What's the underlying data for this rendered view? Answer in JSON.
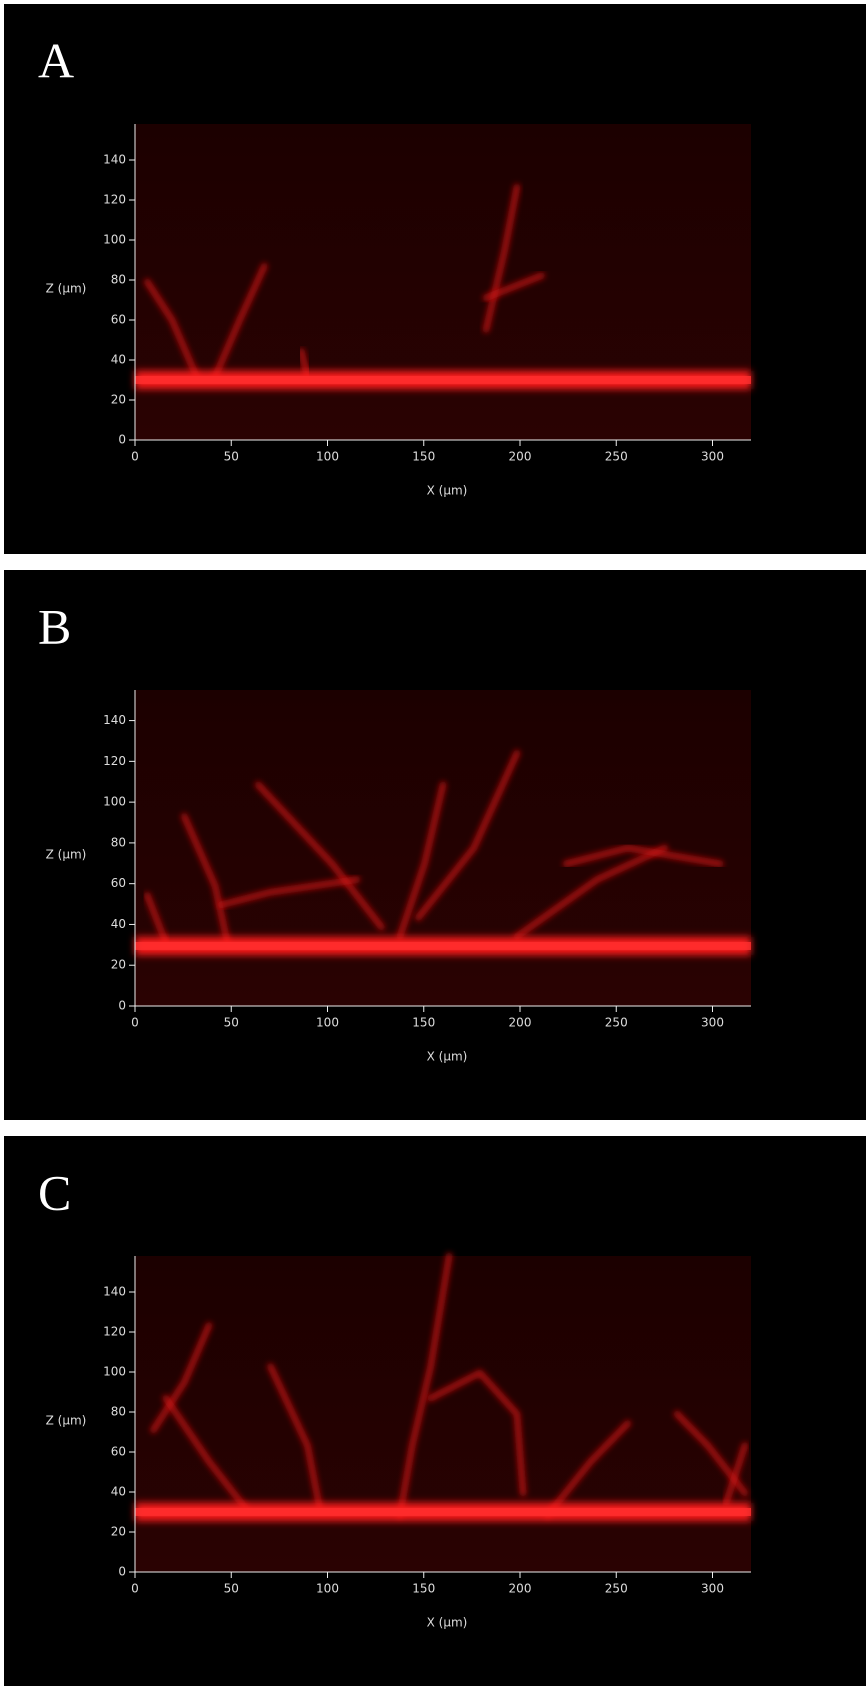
{
  "chart_data": [
    {
      "type": "image",
      "label": "A",
      "xlabel": "X (µm)",
      "ylabel": "Z (µm)",
      "xlim": [
        0,
        320
      ],
      "ylim": [
        0,
        158
      ],
      "xticks": [
        0,
        50,
        100,
        150,
        200,
        250,
        300
      ],
      "yticks": [
        0,
        20,
        40,
        60,
        80,
        100,
        120,
        140
      ]
    },
    {
      "type": "image",
      "label": "B",
      "xlabel": "X (µm)",
      "ylabel": "Z (µm)",
      "xlim": [
        0,
        320
      ],
      "ylim": [
        0,
        155
      ],
      "xticks": [
        0,
        50,
        100,
        150,
        200,
        250,
        300
      ],
      "yticks": [
        0,
        20,
        40,
        60,
        80,
        100,
        120,
        140
      ]
    },
    {
      "type": "image",
      "label": "C",
      "xlabel": "X (µm)",
      "ylabel": "Z (µm)",
      "xlim": [
        0,
        320
      ],
      "ylim": [
        0,
        158
      ],
      "xticks": [
        0,
        50,
        100,
        150,
        200,
        250,
        300
      ],
      "yticks": [
        0,
        20,
        40,
        60,
        80,
        100,
        120,
        140
      ]
    }
  ]
}
